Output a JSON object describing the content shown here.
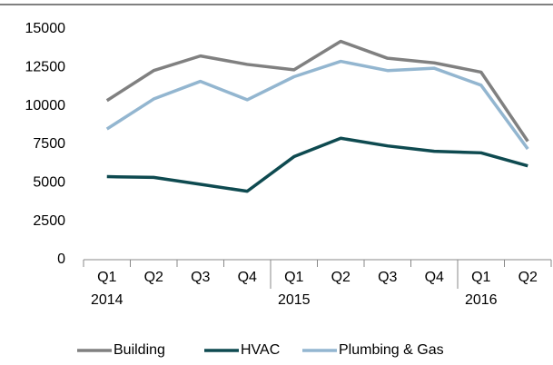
{
  "chart_data": {
    "type": "line",
    "categories": [
      "Q1",
      "Q2",
      "Q3",
      "Q4",
      "Q1",
      "Q2",
      "Q3",
      "Q4",
      "Q1",
      "Q2"
    ],
    "years": [
      "2014",
      null,
      null,
      null,
      "2015",
      null,
      null,
      null,
      "2016",
      null
    ],
    "series": [
      {
        "name": "Building",
        "color": "#808080",
        "values": [
          10350,
          12300,
          13250,
          12700,
          12350,
          14200,
          13100,
          12800,
          12200,
          7700
        ]
      },
      {
        "name": "HVAC",
        "color": "#0e4a50",
        "values": [
          5400,
          5350,
          4900,
          4450,
          6700,
          7900,
          7400,
          7050,
          6950,
          6100
        ]
      },
      {
        "name": "Plumbing & Gas",
        "color": "#93b6d0",
        "values": [
          8500,
          10450,
          11600,
          10400,
          11900,
          12900,
          12300,
          12450,
          11350,
          7200
        ]
      }
    ],
    "ylim": [
      0,
      15000
    ],
    "yticks": [
      0,
      2500,
      5000,
      7500,
      10000,
      12500,
      15000
    ],
    "grid": false,
    "legend": "bottom"
  }
}
